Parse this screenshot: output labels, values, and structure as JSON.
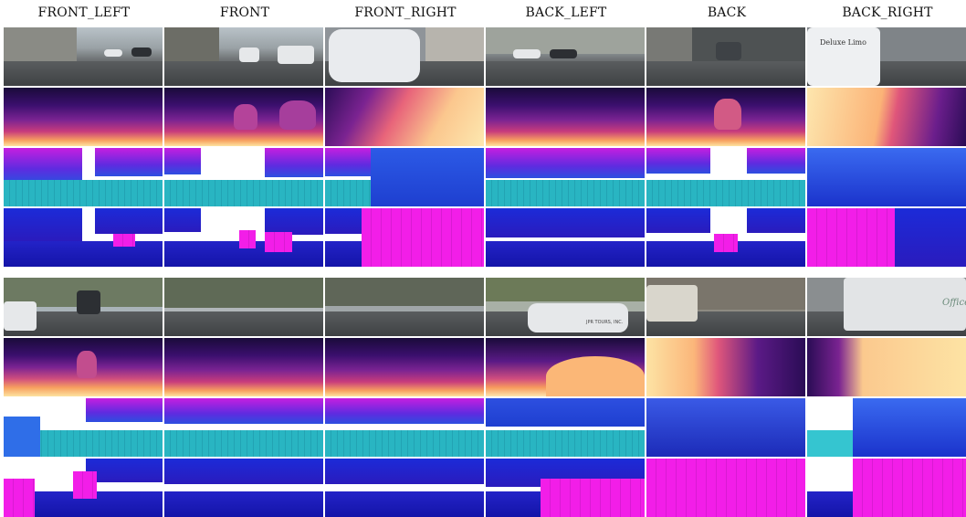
{
  "columns": [
    "FRONT_LEFT",
    "FRONT",
    "FRONT_RIGHT",
    "BACK_LEFT",
    "BACK",
    "BACK_RIGHT"
  ],
  "groups": [
    {
      "rows": [
        "camera",
        "depth",
        "semantic-voxels",
        "occupancy"
      ]
    },
    {
      "rows": [
        "camera",
        "depth",
        "semantic-voxels",
        "occupancy"
      ]
    }
  ],
  "colors": {
    "depth_near": "#fde3a0",
    "depth_far": "#1a0b3a",
    "ground_cyan": "#29b5c2",
    "voxel_blue": "#1c2bd8",
    "voxel_magenta": "#f21ee8"
  },
  "visible_text": {
    "back_right_van_text": "Deluxe Limo",
    "back_left_car_text": "JPR TOURS, INC.",
    "back_right_truck_text": "Office"
  }
}
